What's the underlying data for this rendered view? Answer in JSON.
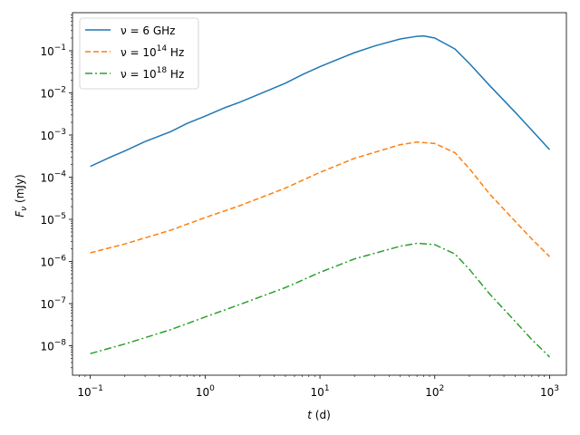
{
  "chart_data": {
    "type": "line",
    "xscale": "log",
    "yscale": "log",
    "xlabel": "t (d)",
    "ylabel": "F_ν (mJy)",
    "xlim": [
      0.07,
      1400
    ],
    "ylim": [
      2e-09,
      0.8
    ],
    "x_ticks": [
      {
        "value": 0.1,
        "base": "10",
        "exp": "−1"
      },
      {
        "value": 1,
        "base": "10",
        "exp": "0"
      },
      {
        "value": 10,
        "base": "10",
        "exp": "1"
      },
      {
        "value": 100,
        "base": "10",
        "exp": "2"
      },
      {
        "value": 1000,
        "base": "10",
        "exp": "3"
      }
    ],
    "y_ticks": [
      {
        "value": 1e-08,
        "base": "10",
        "exp": "−8"
      },
      {
        "value": 1e-07,
        "base": "10",
        "exp": "−7"
      },
      {
        "value": 1e-06,
        "base": "10",
        "exp": "−6"
      },
      {
        "value": 1e-05,
        "base": "10",
        "exp": "−5"
      },
      {
        "value": 0.0001,
        "base": "10",
        "exp": "−4"
      },
      {
        "value": 0.001,
        "base": "10",
        "exp": "−3"
      },
      {
        "value": 0.01,
        "base": "10",
        "exp": "−2"
      },
      {
        "value": 0.1,
        "base": "10",
        "exp": "−1"
      }
    ],
    "legend_position": "top-left",
    "series": [
      {
        "name": "ν = 6 GHz",
        "label_prefix": "ν = 6 GHz",
        "label_sup": "",
        "label_suffix": "",
        "color": "#1f77b4",
        "dash": "solid",
        "x": [
          0.1,
          0.15,
          0.2,
          0.3,
          0.5,
          0.7,
          1,
          1.5,
          2,
          3,
          5,
          7,
          10,
          15,
          20,
          30,
          50,
          70,
          80,
          100,
          150,
          200,
          300,
          500,
          700,
          1000
        ],
        "y": [
          0.00018,
          0.0003,
          0.00042,
          0.0007,
          0.0012,
          0.0019,
          0.0028,
          0.0045,
          0.006,
          0.0095,
          0.017,
          0.027,
          0.042,
          0.066,
          0.09,
          0.13,
          0.19,
          0.22,
          0.225,
          0.2,
          0.11,
          0.05,
          0.015,
          0.0035,
          0.0013,
          0.00045
        ]
      },
      {
        "name": "ν = 10^14 Hz",
        "label_prefix": "ν = 10",
        "label_sup": "14",
        "label_suffix": " Hz",
        "color": "#ff7f0e",
        "dash": "dashed",
        "x": [
          0.1,
          0.2,
          0.5,
          1,
          2,
          5,
          10,
          20,
          50,
          70,
          100,
          150,
          200,
          300,
          500,
          700,
          1000
        ],
        "y": [
          1.6e-06,
          2.6e-06,
          5.5e-06,
          1.1e-05,
          2.1e-05,
          5.5e-05,
          0.00013,
          0.00028,
          0.00059,
          0.00068,
          0.00063,
          0.00038,
          0.00016,
          4e-05,
          9e-06,
          3.4e-06,
          1.3e-06
        ]
      },
      {
        "name": "ν = 10^18 Hz",
        "label_prefix": "ν = 10",
        "label_sup": "18",
        "label_suffix": " Hz",
        "color": "#2ca02c",
        "dash": "dashdot",
        "x": [
          0.1,
          0.2,
          0.5,
          1,
          2,
          5,
          10,
          20,
          50,
          70,
          100,
          150,
          200,
          300,
          500,
          700,
          1000
        ],
        "y": [
          6.5e-09,
          1.1e-08,
          2.4e-08,
          4.8e-08,
          9.5e-08,
          2.4e-07,
          5.5e-07,
          1.15e-06,
          2.3e-06,
          2.7e-06,
          2.5e-06,
          1.5e-06,
          6.5e-07,
          1.7e-07,
          3.8e-08,
          1.4e-08,
          5.4e-09
        ]
      }
    ]
  }
}
